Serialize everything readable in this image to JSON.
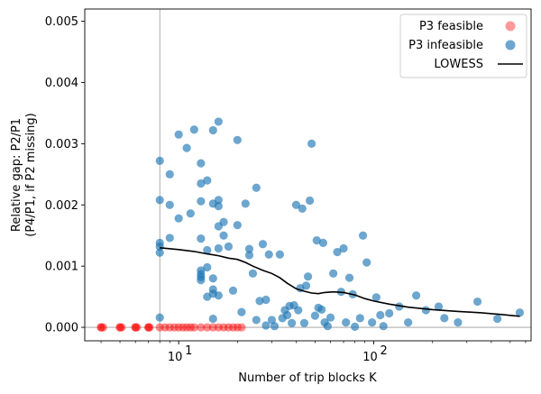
{
  "chart_data": {
    "type": "scatter",
    "xscale": "log",
    "xlabel": "Number of trip blocks K",
    "ylabel_line1": "Relative gap: P2/P1",
    "ylabel_line2": "(P4/P1, if P2 missing)",
    "xlim": [
      3.3,
      640
    ],
    "ylim": [
      -0.00022,
      0.0052
    ],
    "yticks": [
      {
        "value": 0.0,
        "label": "0.000"
      },
      {
        "value": 0.001,
        "label": "0.001"
      },
      {
        "value": 0.002,
        "label": "0.002"
      },
      {
        "value": 0.003,
        "label": "0.003"
      },
      {
        "value": 0.004,
        "label": "0.004"
      },
      {
        "value": 0.005,
        "label": "0.005"
      }
    ],
    "xticks_major": [
      {
        "value": 10,
        "base": "10",
        "exp": "1"
      },
      {
        "value": 100,
        "base": "10",
        "exp": "2"
      }
    ],
    "reference_lines": {
      "vertical_x": 8,
      "horizontal_y": 0
    },
    "colors": {
      "feasible": "#ff0000",
      "infeasible": "#1f77b4",
      "lowess": "#000000",
      "refline": "#999999"
    },
    "legend": {
      "position": "upper right",
      "feasible": "P3 feasible",
      "infeasible": "P3 infeasible",
      "lowess": "LOWESS"
    },
    "series": [
      {
        "name": "P3 feasible",
        "points": [
          [
            4,
            0
          ],
          [
            4,
            0
          ],
          [
            4.1,
            0
          ],
          [
            5,
            0
          ],
          [
            5,
            0
          ],
          [
            5.1,
            0
          ],
          [
            6,
            0
          ],
          [
            6,
            0
          ],
          [
            6.1,
            0
          ],
          [
            7,
            0
          ],
          [
            7,
            0
          ],
          [
            7.1,
            0
          ],
          [
            8,
            0
          ],
          [
            8.5,
            0
          ],
          [
            9,
            0
          ],
          [
            9.5,
            0
          ],
          [
            10,
            0
          ],
          [
            10.5,
            0
          ],
          [
            11,
            0
          ],
          [
            11.5,
            0
          ],
          [
            12,
            0
          ],
          [
            13,
            0
          ],
          [
            14,
            0
          ],
          [
            15,
            0
          ],
          [
            16,
            0
          ],
          [
            17,
            0
          ],
          [
            18,
            0
          ],
          [
            19,
            0
          ],
          [
            20,
            0
          ],
          [
            21,
            0
          ]
        ]
      },
      {
        "name": "P3 infeasible",
        "points": [
          [
            8,
            0.00272
          ],
          [
            8,
            0.00208
          ],
          [
            8,
            0.00138
          ],
          [
            8,
            0.00132
          ],
          [
            8,
            0.00122
          ],
          [
            8,
            0.00016
          ],
          [
            9,
            0.0025
          ],
          [
            9,
            0.002
          ],
          [
            9,
            0.00146
          ],
          [
            10,
            0.00315
          ],
          [
            10,
            0.00178
          ],
          [
            11,
            0.00293
          ],
          [
            11.5,
            0.00186
          ],
          [
            12,
            0.00323
          ],
          [
            13,
            0.00268
          ],
          [
            13,
            0.00235
          ],
          [
            13,
            0.00206
          ],
          [
            13,
            0.00145
          ],
          [
            13,
            0.00093
          ],
          [
            13,
            0.00087
          ],
          [
            13,
            0.00082
          ],
          [
            13,
            0.00077
          ],
          [
            14,
            0.0024
          ],
          [
            14,
            0.00126
          ],
          [
            14,
            0.00098
          ],
          [
            14,
            0.0005
          ],
          [
            15,
            0.00322
          ],
          [
            15,
            0.00202
          ],
          [
            15,
            0.0008
          ],
          [
            15,
            0.00062
          ],
          [
            15,
            0.00055
          ],
          [
            15,
            0.00014
          ],
          [
            16,
            0.00336
          ],
          [
            16,
            0.00208
          ],
          [
            16,
            0.00198
          ],
          [
            16,
            0.00165
          ],
          [
            16,
            0.00129
          ],
          [
            16,
            0.00052
          ],
          [
            17,
            0.00172
          ],
          [
            17,
            0.0015
          ],
          [
            18,
            0.00132
          ],
          [
            19,
            0.0006
          ],
          [
            20,
            0.00306
          ],
          [
            20,
            0.00167
          ],
          [
            21,
            0.00025
          ],
          [
            22,
            0.00202
          ],
          [
            23,
            0.00128
          ],
          [
            23,
            0.00118
          ],
          [
            24,
            0.00088
          ],
          [
            25,
            0.00228
          ],
          [
            25,
            0.00012
          ],
          [
            26,
            0.00043
          ],
          [
            27,
            0.00136
          ],
          [
            28,
            0.00045
          ],
          [
            28,
            3e-05
          ],
          [
            29,
            0.00119
          ],
          [
            30,
            0.00012
          ],
          [
            31,
            2e-05
          ],
          [
            33,
            0.00119
          ],
          [
            34,
            0.00015
          ],
          [
            35,
            0.00028
          ],
          [
            36,
            0.0002
          ],
          [
            37,
            0.00035
          ],
          [
            38,
            7e-05
          ],
          [
            39,
            0.00036
          ],
          [
            40,
            0.002
          ],
          [
            41,
            0.00028
          ],
          [
            42,
            0.00064
          ],
          [
            43,
            0.00194
          ],
          [
            44,
            7e-05
          ],
          [
            45,
            0.00068
          ],
          [
            46,
            0.00083
          ],
          [
            47,
            0.00207
          ],
          [
            48,
            0.003
          ],
          [
            50,
            0.00019
          ],
          [
            51,
            0.00142
          ],
          [
            52,
            0.00032
          ],
          [
            54,
            0.00029
          ],
          [
            55,
            0.00138
          ],
          [
            56,
            8e-05
          ],
          [
            58,
            2e-05
          ],
          [
            60,
            0.00016
          ],
          [
            62,
            0.00088
          ],
          [
            65,
            0.00123
          ],
          [
            68,
            0.00058
          ],
          [
            70,
            0.00129
          ],
          [
            72,
            8e-05
          ],
          [
            75,
            0.00081
          ],
          [
            78,
            0.00054
          ],
          [
            80,
            1e-05
          ],
          [
            85,
            0.00015
          ],
          [
            88,
            0.0015
          ],
          [
            92,
            0.00106
          ],
          [
            98,
            8e-05
          ],
          [
            103,
            0.00049
          ],
          [
            108,
            0.0002
          ],
          [
            112,
            2e-05
          ],
          [
            120,
            0.00023
          ],
          [
            135,
            0.00034
          ],
          [
            150,
            8e-05
          ],
          [
            165,
            0.00052
          ],
          [
            185,
            0.00028
          ],
          [
            215,
            0.00034
          ],
          [
            230,
            0.00015
          ],
          [
            270,
            8e-05
          ],
          [
            340,
            0.00042
          ],
          [
            430,
            0.00014
          ],
          [
            560,
            0.00024
          ]
        ]
      },
      {
        "name": "LOWESS",
        "points": [
          [
            8,
            0.0013
          ],
          [
            10,
            0.00127
          ],
          [
            12,
            0.00124
          ],
          [
            14,
            0.0012
          ],
          [
            16,
            0.00117
          ],
          [
            18,
            0.00113
          ],
          [
            20,
            0.00111
          ],
          [
            22,
            0.00106
          ],
          [
            24,
            0.001
          ],
          [
            27,
            0.00093
          ],
          [
            30,
            0.00088
          ],
          [
            33,
            0.00081
          ],
          [
            36,
            0.00072
          ],
          [
            40,
            0.00063
          ],
          [
            44,
            0.00059
          ],
          [
            48,
            0.00056
          ],
          [
            52,
            0.00055
          ],
          [
            56,
            0.00057
          ],
          [
            62,
            0.00058
          ],
          [
            70,
            0.00057
          ],
          [
            80,
            0.00053
          ],
          [
            90,
            0.00047
          ],
          [
            100,
            0.00043
          ],
          [
            120,
            0.00038
          ],
          [
            150,
            0.00033
          ],
          [
            200,
            0.00029
          ],
          [
            270,
            0.00026
          ],
          [
            350,
            0.00024
          ],
          [
            450,
            0.00021
          ],
          [
            560,
            0.00018
          ]
        ]
      }
    ]
  }
}
